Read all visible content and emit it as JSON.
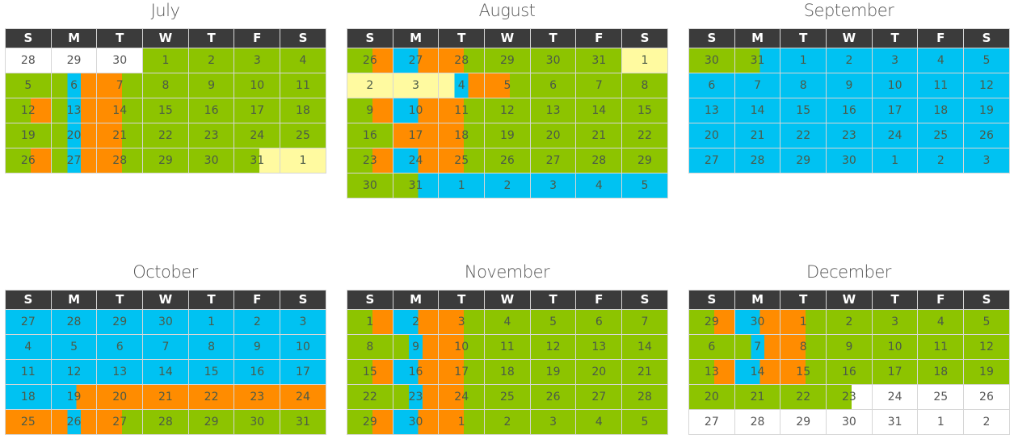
{
  "weekday_headers": [
    "S",
    "M",
    "T",
    "W",
    "T",
    "F",
    "S"
  ],
  "colors": {
    "green": "#8dc400",
    "blue": "#00c2f2",
    "orange": "#ff8c00",
    "yellow": "#fffaa0",
    "white": "#ffffff",
    "header": "#3b3b3b"
  },
  "months": [
    {
      "name": "July",
      "weeks": [
        [
          {
            "d": "28",
            "c": "w"
          },
          {
            "d": "29",
            "c": "w"
          },
          {
            "d": "30",
            "c": "w"
          },
          {
            "d": "1",
            "c": "g"
          },
          {
            "d": "2",
            "c": "g"
          },
          {
            "d": "3",
            "c": "g"
          },
          {
            "d": "4",
            "c": "g"
          }
        ],
        [
          {
            "d": "5",
            "c": "g"
          },
          {
            "d": "6",
            "c": "gbo"
          },
          {
            "d": "7",
            "c": "og"
          },
          {
            "d": "8",
            "c": "g"
          },
          {
            "d": "9",
            "c": "g"
          },
          {
            "d": "10",
            "c": "g"
          },
          {
            "d": "11",
            "c": "g"
          }
        ],
        [
          {
            "d": "12",
            "c": "go"
          },
          {
            "d": "13",
            "c": "gbo"
          },
          {
            "d": "14",
            "c": "og"
          },
          {
            "d": "15",
            "c": "g"
          },
          {
            "d": "16",
            "c": "g"
          },
          {
            "d": "17",
            "c": "g"
          },
          {
            "d": "18",
            "c": "g"
          }
        ],
        [
          {
            "d": "19",
            "c": "g"
          },
          {
            "d": "20",
            "c": "gbo"
          },
          {
            "d": "21",
            "c": "og"
          },
          {
            "d": "22",
            "c": "g"
          },
          {
            "d": "23",
            "c": "g"
          },
          {
            "d": "24",
            "c": "g"
          },
          {
            "d": "25",
            "c": "g"
          }
        ],
        [
          {
            "d": "26",
            "c": "go"
          },
          {
            "d": "27",
            "c": "gbo"
          },
          {
            "d": "28",
            "c": "og"
          },
          {
            "d": "29",
            "c": "g"
          },
          {
            "d": "30",
            "c": "g"
          },
          {
            "d": "31",
            "c": "gy"
          },
          {
            "d": "1",
            "c": "y"
          }
        ]
      ]
    },
    {
      "name": "August",
      "weeks": [
        [
          {
            "d": "26",
            "c": "go"
          },
          {
            "d": "27",
            "c": "bo"
          },
          {
            "d": "28",
            "c": "og"
          },
          {
            "d": "29",
            "c": "g"
          },
          {
            "d": "30",
            "c": "g"
          },
          {
            "d": "31",
            "c": "g"
          },
          {
            "d": "1",
            "c": "y"
          }
        ],
        [
          {
            "d": "2",
            "c": "y"
          },
          {
            "d": "3",
            "c": "y"
          },
          {
            "d": "4",
            "c": "ybo"
          },
          {
            "d": "5",
            "c": "og"
          },
          {
            "d": "6",
            "c": "g"
          },
          {
            "d": "7",
            "c": "g"
          },
          {
            "d": "8",
            "c": "g"
          }
        ],
        [
          {
            "d": "9",
            "c": "go"
          },
          {
            "d": "10",
            "c": "bo"
          },
          {
            "d": "11",
            "c": "og"
          },
          {
            "d": "12",
            "c": "g"
          },
          {
            "d": "13",
            "c": "g"
          },
          {
            "d": "14",
            "c": "g"
          },
          {
            "d": "15",
            "c": "g"
          }
        ],
        [
          {
            "d": "16",
            "c": "g"
          },
          {
            "d": "17",
            "c": "o"
          },
          {
            "d": "18",
            "c": "og"
          },
          {
            "d": "19",
            "c": "g"
          },
          {
            "d": "20",
            "c": "g"
          },
          {
            "d": "21",
            "c": "g"
          },
          {
            "d": "22",
            "c": "g"
          }
        ],
        [
          {
            "d": "23",
            "c": "go"
          },
          {
            "d": "24",
            "c": "bo"
          },
          {
            "d": "25",
            "c": "og"
          },
          {
            "d": "26",
            "c": "g"
          },
          {
            "d": "27",
            "c": "g"
          },
          {
            "d": "28",
            "c": "g"
          },
          {
            "d": "29",
            "c": "g"
          }
        ],
        [
          {
            "d": "30",
            "c": "g"
          },
          {
            "d": "31",
            "c": "gb"
          },
          {
            "d": "1",
            "c": "b"
          },
          {
            "d": "2",
            "c": "b"
          },
          {
            "d": "3",
            "c": "b"
          },
          {
            "d": "4",
            "c": "b"
          },
          {
            "d": "5",
            "c": "b"
          }
        ]
      ]
    },
    {
      "name": "September",
      "weeks": [
        [
          {
            "d": "30",
            "c": "g"
          },
          {
            "d": "31",
            "c": "gb"
          },
          {
            "d": "1",
            "c": "b"
          },
          {
            "d": "2",
            "c": "b"
          },
          {
            "d": "3",
            "c": "b"
          },
          {
            "d": "4",
            "c": "b"
          },
          {
            "d": "5",
            "c": "b"
          }
        ],
        [
          {
            "d": "6",
            "c": "b"
          },
          {
            "d": "7",
            "c": "b"
          },
          {
            "d": "8",
            "c": "b"
          },
          {
            "d": "9",
            "c": "b"
          },
          {
            "d": "10",
            "c": "b"
          },
          {
            "d": "11",
            "c": "b"
          },
          {
            "d": "12",
            "c": "b"
          }
        ],
        [
          {
            "d": "13",
            "c": "b"
          },
          {
            "d": "14",
            "c": "b"
          },
          {
            "d": "15",
            "c": "b"
          },
          {
            "d": "16",
            "c": "b"
          },
          {
            "d": "17",
            "c": "b"
          },
          {
            "d": "18",
            "c": "b"
          },
          {
            "d": "19",
            "c": "b"
          }
        ],
        [
          {
            "d": "20",
            "c": "b"
          },
          {
            "d": "21",
            "c": "b"
          },
          {
            "d": "22",
            "c": "b"
          },
          {
            "d": "23",
            "c": "b"
          },
          {
            "d": "24",
            "c": "b"
          },
          {
            "d": "25",
            "c": "b"
          },
          {
            "d": "26",
            "c": "b"
          }
        ],
        [
          {
            "d": "27",
            "c": "b"
          },
          {
            "d": "28",
            "c": "b"
          },
          {
            "d": "29",
            "c": "b"
          },
          {
            "d": "30",
            "c": "b"
          },
          {
            "d": "1",
            "c": "b"
          },
          {
            "d": "2",
            "c": "b"
          },
          {
            "d": "3",
            "c": "b"
          }
        ]
      ]
    },
    {
      "name": "October",
      "weeks": [
        [
          {
            "d": "27",
            "c": "b"
          },
          {
            "d": "28",
            "c": "b"
          },
          {
            "d": "29",
            "c": "b"
          },
          {
            "d": "30",
            "c": "b"
          },
          {
            "d": "1",
            "c": "b"
          },
          {
            "d": "2",
            "c": "b"
          },
          {
            "d": "3",
            "c": "b"
          }
        ],
        [
          {
            "d": "4",
            "c": "b"
          },
          {
            "d": "5",
            "c": "b"
          },
          {
            "d": "6",
            "c": "b"
          },
          {
            "d": "7",
            "c": "b"
          },
          {
            "d": "8",
            "c": "b"
          },
          {
            "d": "9",
            "c": "b"
          },
          {
            "d": "10",
            "c": "b"
          }
        ],
        [
          {
            "d": "11",
            "c": "b"
          },
          {
            "d": "12",
            "c": "b"
          },
          {
            "d": "13",
            "c": "b"
          },
          {
            "d": "14",
            "c": "b"
          },
          {
            "d": "15",
            "c": "b"
          },
          {
            "d": "16",
            "c": "b"
          },
          {
            "d": "17",
            "c": "b"
          }
        ],
        [
          {
            "d": "18",
            "c": "b"
          },
          {
            "d": "19",
            "c": "bo"
          },
          {
            "d": "20",
            "c": "o"
          },
          {
            "d": "21",
            "c": "o"
          },
          {
            "d": "22",
            "c": "o"
          },
          {
            "d": "23",
            "c": "o"
          },
          {
            "d": "24",
            "c": "o"
          }
        ],
        [
          {
            "d": "25",
            "c": "o"
          },
          {
            "d": "26",
            "c": "obo"
          },
          {
            "d": "27",
            "c": "og"
          },
          {
            "d": "28",
            "c": "g"
          },
          {
            "d": "29",
            "c": "g"
          },
          {
            "d": "30",
            "c": "g"
          },
          {
            "d": "31",
            "c": "g"
          }
        ]
      ]
    },
    {
      "name": "November",
      "weeks": [
        [
          {
            "d": "1",
            "c": "go"
          },
          {
            "d": "2",
            "c": "bo"
          },
          {
            "d": "3",
            "c": "og"
          },
          {
            "d": "4",
            "c": "g"
          },
          {
            "d": "5",
            "c": "g"
          },
          {
            "d": "6",
            "c": "g"
          },
          {
            "d": "7",
            "c": "g"
          }
        ],
        [
          {
            "d": "8",
            "c": "g"
          },
          {
            "d": "9",
            "c": "gbo"
          },
          {
            "d": "10",
            "c": "og"
          },
          {
            "d": "11",
            "c": "g"
          },
          {
            "d": "12",
            "c": "g"
          },
          {
            "d": "13",
            "c": "g"
          },
          {
            "d": "14",
            "c": "g"
          }
        ],
        [
          {
            "d": "15",
            "c": "go"
          },
          {
            "d": "16",
            "c": "bo"
          },
          {
            "d": "17",
            "c": "og"
          },
          {
            "d": "18",
            "c": "g"
          },
          {
            "d": "19",
            "c": "g"
          },
          {
            "d": "20",
            "c": "g"
          },
          {
            "d": "21",
            "c": "g"
          }
        ],
        [
          {
            "d": "22",
            "c": "g"
          },
          {
            "d": "23",
            "c": "gbo"
          },
          {
            "d": "24",
            "c": "og"
          },
          {
            "d": "25",
            "c": "g"
          },
          {
            "d": "26",
            "c": "g"
          },
          {
            "d": "27",
            "c": "g"
          },
          {
            "d": "28",
            "c": "g"
          }
        ],
        [
          {
            "d": "29",
            "c": "go"
          },
          {
            "d": "30",
            "c": "bo"
          },
          {
            "d": "1",
            "c": "og"
          },
          {
            "d": "2",
            "c": "g"
          },
          {
            "d": "3",
            "c": "g"
          },
          {
            "d": "4",
            "c": "g"
          },
          {
            "d": "5",
            "c": "g"
          }
        ]
      ]
    },
    {
      "name": "December",
      "weeks": [
        [
          {
            "d": "29",
            "c": "go"
          },
          {
            "d": "30",
            "c": "bo"
          },
          {
            "d": "1",
            "c": "og"
          },
          {
            "d": "2",
            "c": "g"
          },
          {
            "d": "3",
            "c": "g"
          },
          {
            "d": "4",
            "c": "g"
          },
          {
            "d": "5",
            "c": "g"
          }
        ],
        [
          {
            "d": "6",
            "c": "g"
          },
          {
            "d": "7",
            "c": "gbo"
          },
          {
            "d": "8",
            "c": "og"
          },
          {
            "d": "9",
            "c": "g"
          },
          {
            "d": "10",
            "c": "g"
          },
          {
            "d": "11",
            "c": "g"
          },
          {
            "d": "12",
            "c": "g"
          }
        ],
        [
          {
            "d": "13",
            "c": "go"
          },
          {
            "d": "14",
            "c": "bo"
          },
          {
            "d": "15",
            "c": "og"
          },
          {
            "d": "16",
            "c": "g"
          },
          {
            "d": "17",
            "c": "g"
          },
          {
            "d": "18",
            "c": "g"
          },
          {
            "d": "19",
            "c": "g"
          }
        ],
        [
          {
            "d": "20",
            "c": "g"
          },
          {
            "d": "21",
            "c": "g"
          },
          {
            "d": "22",
            "c": "g"
          },
          {
            "d": "23",
            "c": "gw"
          },
          {
            "d": "24",
            "c": "w"
          },
          {
            "d": "25",
            "c": "w"
          },
          {
            "d": "26",
            "c": "w"
          }
        ],
        [
          {
            "d": "27",
            "c": "w"
          },
          {
            "d": "28",
            "c": "w"
          },
          {
            "d": "29",
            "c": "w"
          },
          {
            "d": "30",
            "c": "w"
          },
          {
            "d": "31",
            "c": "w"
          },
          {
            "d": "1",
            "c": "w"
          },
          {
            "d": "2",
            "c": "w"
          }
        ]
      ]
    }
  ]
}
